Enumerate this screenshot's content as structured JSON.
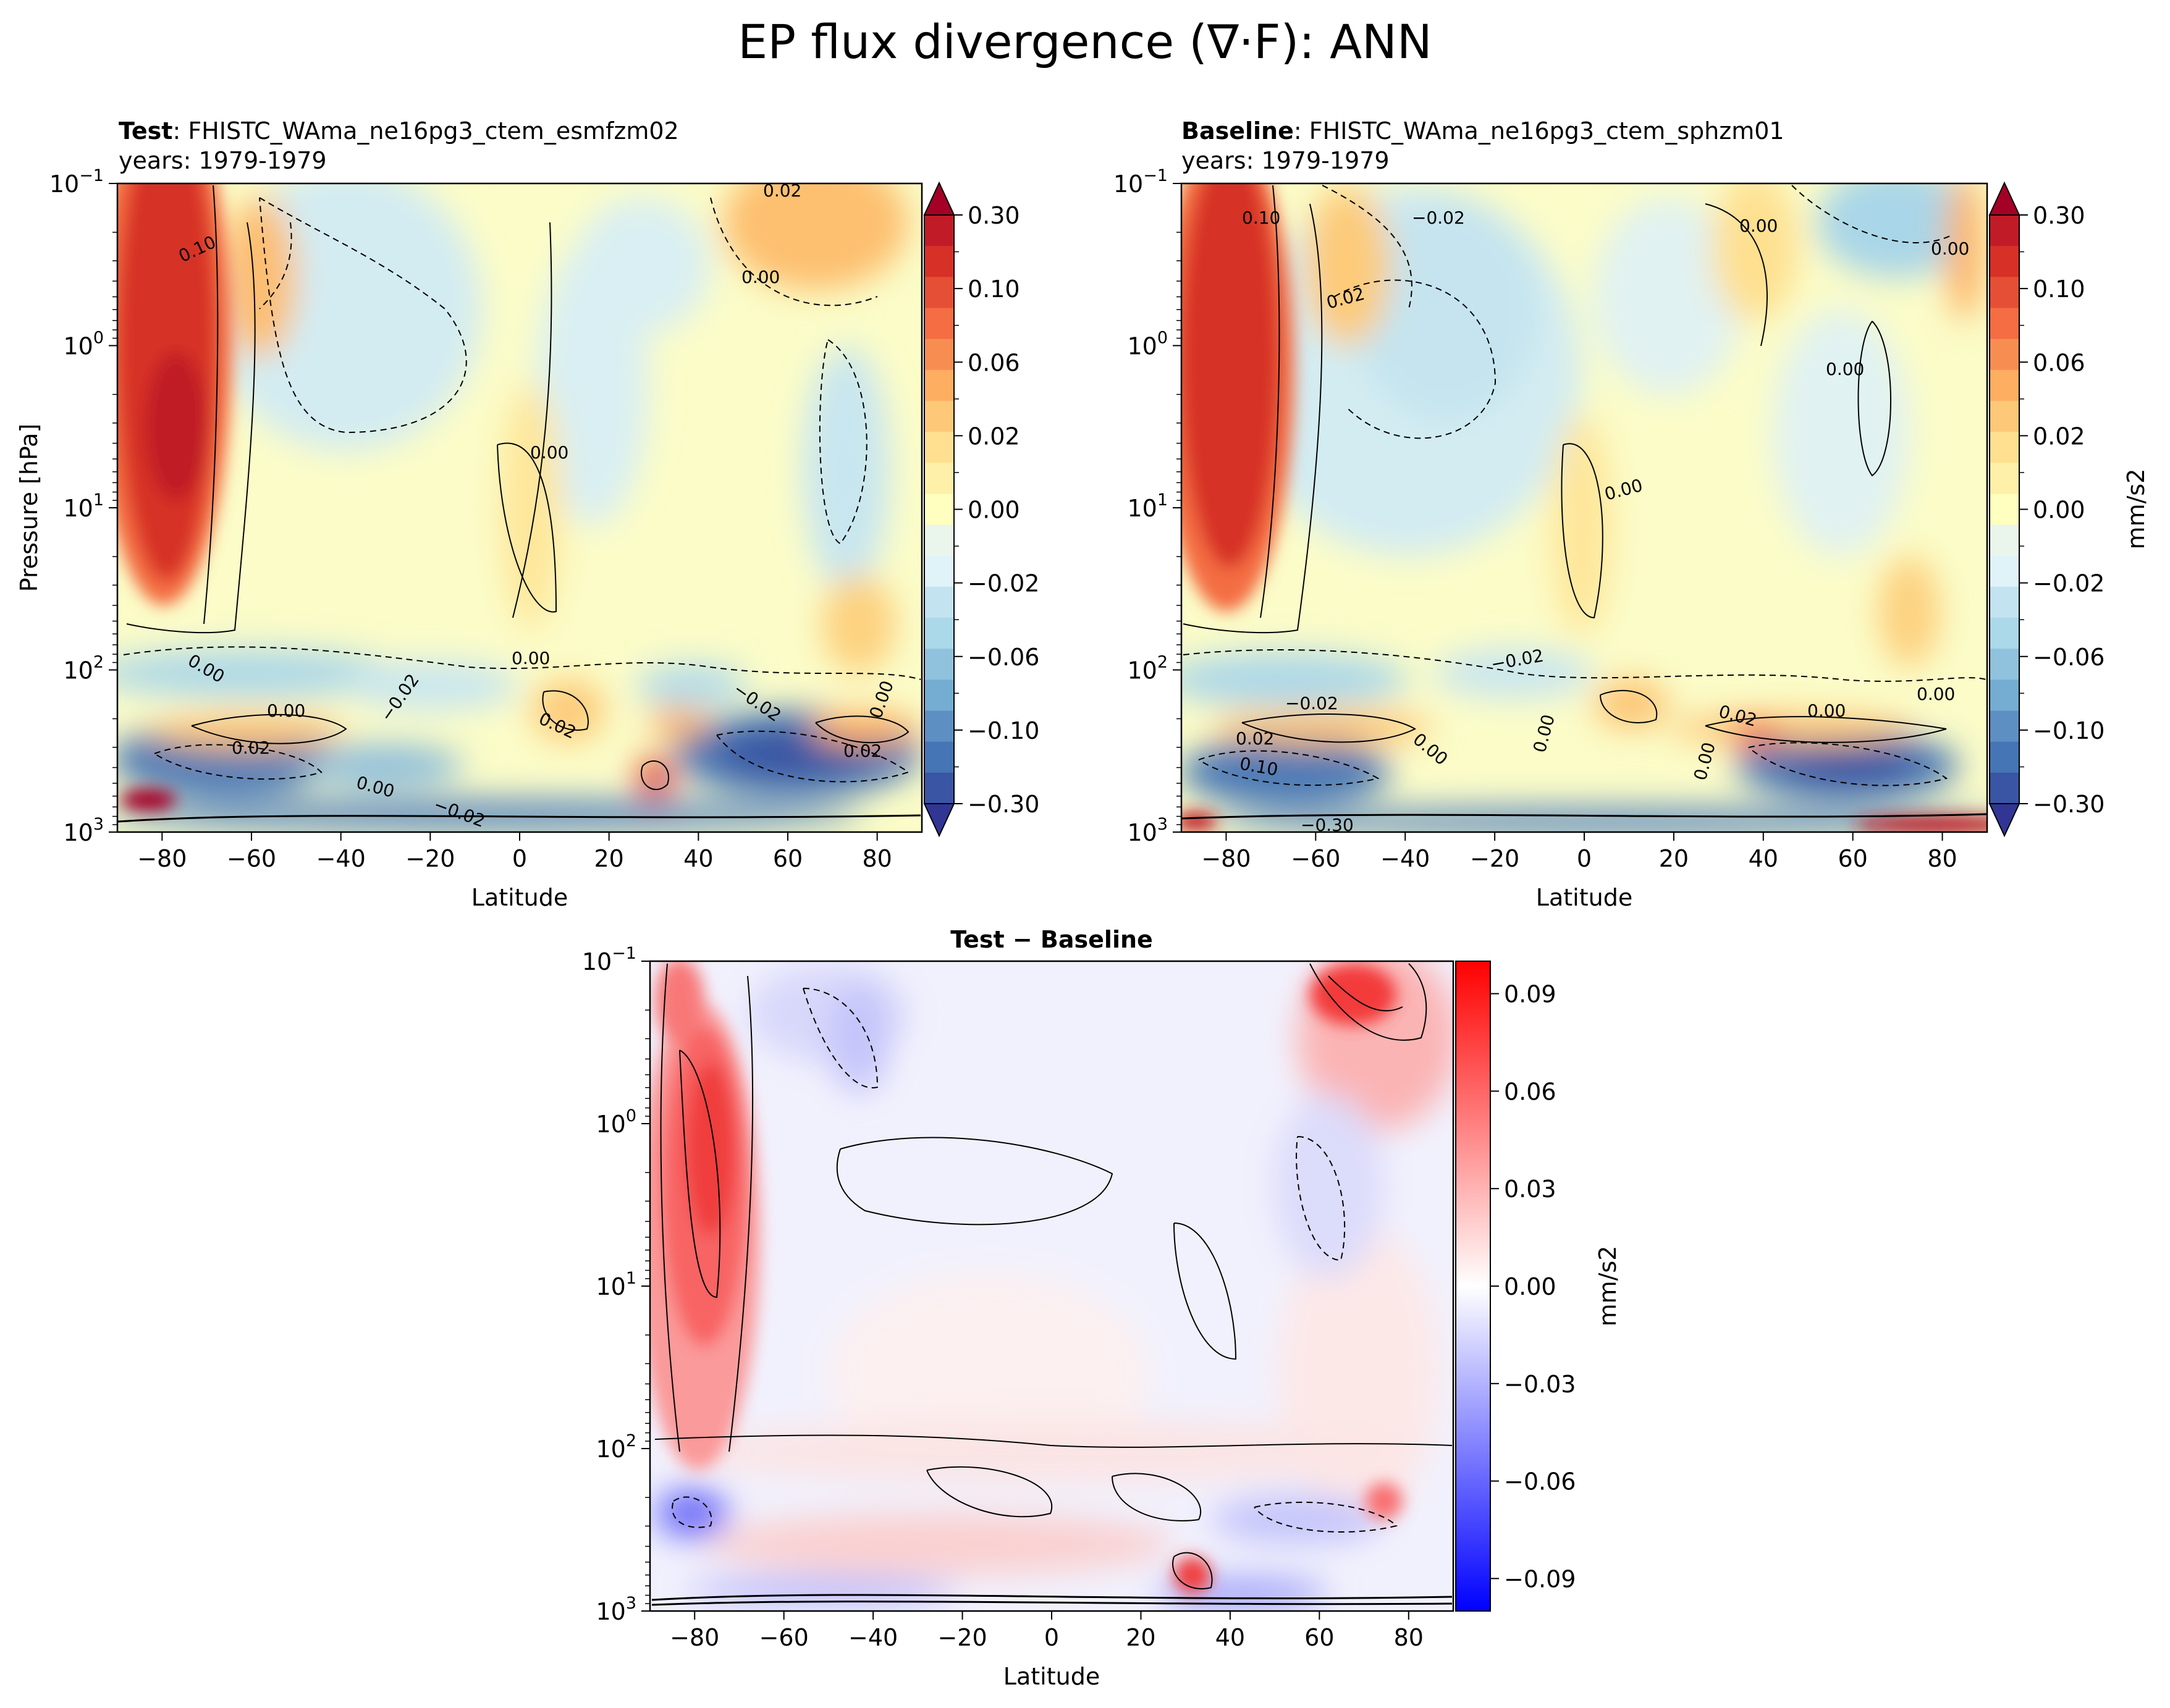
{
  "figure_title": "EP flux divergence (∇·F): ANN",
  "chart_data": [
    {
      "type": "heatmap",
      "panel": "test",
      "label_bold": "Test",
      "label_rest": ": FHISTC_WAma_ne16pg3_ctem_esmfzm02",
      "years": "years: 1979-1979",
      "xlabel": "Latitude",
      "ylabel": "Pressure [hPa]",
      "xlim": [
        -90,
        90
      ],
      "ylim_hPa": [
        1000,
        0.1
      ],
      "xticks": [
        "−80",
        "−60",
        "−40",
        "−20",
        "0",
        "20",
        "40",
        "60",
        "80"
      ],
      "yticks": [
        {
          "b": "10",
          "e": "−1"
        },
        {
          "b": "10",
          "e": "0"
        },
        {
          "b": "10",
          "e": "1"
        },
        {
          "b": "10",
          "e": "2"
        },
        {
          "b": "10",
          "e": "3"
        }
      ],
      "contour_labels": [
        "0.10",
        "0.02",
        "0.00",
        "0.00",
        "0.00",
        "0.00",
        "0.00",
        "−0.02",
        "0.02",
        "0.02",
        "−0.02",
        "0.00",
        "0.02",
        "0.00",
        "−0.02"
      ]
    },
    {
      "type": "heatmap",
      "panel": "baseline",
      "label_bold": "Baseline",
      "label_rest": ": FHISTC_WAma_ne16pg3_ctem_sphzm01",
      "years": "years: 1979-1979",
      "xlabel": "Latitude",
      "xlim": [
        -90,
        90
      ],
      "ylim_hPa": [
        1000,
        0.1
      ],
      "xticks": [
        "−80",
        "−60",
        "−40",
        "−20",
        "0",
        "20",
        "40",
        "60",
        "80"
      ],
      "yticks": [
        {
          "b": "10",
          "e": "−1"
        },
        {
          "b": "10",
          "e": "0"
        },
        {
          "b": "10",
          "e": "1"
        },
        {
          "b": "10",
          "e": "2"
        },
        {
          "b": "10",
          "e": "3"
        }
      ],
      "contour_labels": [
        "0.10",
        "−0.02",
        "0.00",
        "0.00",
        "0.02",
        "0.00",
        "0.00",
        "−0.02",
        "0.00",
        "−0.02",
        "0.02",
        "0.02",
        "0.10",
        "0.00",
        "0.00",
        "0.00",
        "0.00",
        "−0.30"
      ]
    },
    {
      "type": "heatmap",
      "panel": "difference",
      "title_bold": "Test − Baseline",
      "xlabel": "Latitude",
      "xlim": [
        -90,
        90
      ],
      "ylim_hPa": [
        1000,
        0.1
      ],
      "xticks": [
        "−80",
        "−60",
        "−40",
        "−20",
        "0",
        "20",
        "40",
        "60",
        "80"
      ],
      "yticks": [
        {
          "b": "10",
          "e": "−1"
        },
        {
          "b": "10",
          "e": "0"
        },
        {
          "b": "10",
          "e": "1"
        },
        {
          "b": "10",
          "e": "2"
        },
        {
          "b": "10",
          "e": "3"
        }
      ]
    }
  ],
  "colorbar_main": {
    "unit": "mm/s2",
    "extend": "both",
    "tick_labels": [
      "0.30",
      "0.10",
      "0.06",
      "0.02",
      "0.00",
      "−0.02",
      "−0.06",
      "−0.10",
      "−0.30"
    ],
    "colors_top_to_bottom": [
      "#c01b27",
      "#d73027",
      "#e54f35",
      "#f46d43",
      "#f88d52",
      "#fdae61",
      "#fdc877",
      "#fee090",
      "#fef0a8",
      "#ffffbf",
      "#eaf6ec",
      "#e0f3f8",
      "#c2e3ef",
      "#abd9e9",
      "#90c2dd",
      "#74add1",
      "#5e8fc3",
      "#4575b4",
      "#3a55a3"
    ],
    "extend_top_color": "#a50026",
    "extend_bottom_color": "#313695"
  },
  "colorbar_diff": {
    "unit": "mm/s2",
    "tick_labels": [
      "0.09",
      "0.06",
      "0.03",
      "0.00",
      "−0.03",
      "−0.06",
      "−0.09"
    ],
    "range": [
      -0.1,
      0.1
    ],
    "color_max": "#ff0000",
    "color_min": "#0000ff",
    "color_mid": "#ffffff"
  }
}
